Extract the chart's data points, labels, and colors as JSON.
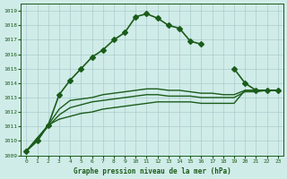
{
  "bg_color": "#d0ece8",
  "grid_color": "#aacccc",
  "line_color": "#1a5c1a",
  "x_ticks": [
    0,
    1,
    2,
    3,
    4,
    5,
    6,
    7,
    8,
    9,
    10,
    11,
    12,
    13,
    14,
    15,
    16,
    17,
    18,
    19,
    20,
    21,
    22,
    23
  ],
  "y_ticks": [
    1009,
    1010,
    1011,
    1012,
    1013,
    1014,
    1015,
    1016,
    1017,
    1018,
    1019
  ],
  "ylim": [
    1009,
    1019.5
  ],
  "xlim": [
    -0.5,
    23.5
  ],
  "xlabel": "Graphe pression niveau de la mer (hPa)",
  "series": [
    {
      "x": [
        0,
        1,
        2,
        3,
        4,
        5,
        6,
        7,
        8,
        9,
        10,
        11,
        12,
        13,
        14,
        15,
        16,
        17,
        18,
        19,
        20,
        21,
        22,
        23
      ],
      "y": [
        1009.3,
        1010.0,
        1011.1,
        1013.2,
        1014.2,
        1015.0,
        1015.8,
        1016.3,
        1017.0,
        1017.5,
        1018.6,
        1018.8,
        1018.5,
        1018.0,
        1017.8,
        1016.9,
        1016.7,
        null,
        null,
        1015.0,
        1014.0,
        1013.5,
        1013.5,
        1013.5
      ],
      "marker": "D",
      "markersize": 3,
      "linewidth": 1.2
    },
    {
      "x": [
        0,
        1,
        2,
        3,
        4,
        5,
        6,
        7,
        8,
        9,
        10,
        11,
        12,
        13,
        14,
        15,
        16,
        17,
        18,
        19,
        20,
        21,
        22,
        23
      ],
      "y": [
        1009.3,
        1010.2,
        1011.1,
        1012.2,
        1012.8,
        1012.9,
        1013.0,
        1013.2,
        1013.3,
        1013.4,
        1013.5,
        1013.6,
        1013.6,
        1013.5,
        1013.5,
        1013.4,
        1013.3,
        1013.3,
        1013.2,
        1013.2,
        1013.5,
        1013.5,
        1013.5,
        1013.5
      ],
      "marker": null,
      "markersize": 0,
      "linewidth": 1.0
    },
    {
      "x": [
        0,
        1,
        2,
        3,
        4,
        5,
        6,
        7,
        8,
        9,
        10,
        11,
        12,
        13,
        14,
        15,
        16,
        17,
        18,
        19,
        20,
        21,
        22,
        23
      ],
      "y": [
        1009.3,
        1010.2,
        1011.0,
        1011.8,
        1012.3,
        1012.5,
        1012.7,
        1012.8,
        1012.9,
        1013.0,
        1013.1,
        1013.2,
        1013.2,
        1013.1,
        1013.1,
        1013.1,
        1013.0,
        1013.0,
        1013.0,
        1013.0,
        1013.4,
        1013.4,
        1013.5,
        1013.5
      ],
      "marker": null,
      "markersize": 0,
      "linewidth": 1.0
    },
    {
      "x": [
        0,
        1,
        2,
        3,
        4,
        5,
        6,
        7,
        8,
        9,
        10,
        11,
        12,
        13,
        14,
        15,
        16,
        17,
        18,
        19,
        20,
        21,
        22,
        23
      ],
      "y": [
        1009.3,
        1010.0,
        1011.1,
        1011.5,
        1011.7,
        1011.9,
        1012.0,
        1012.2,
        1012.3,
        1012.4,
        1012.5,
        1012.6,
        1012.7,
        1012.7,
        1012.7,
        1012.7,
        1012.6,
        1012.6,
        1012.6,
        1012.6,
        1013.5,
        1013.5,
        1013.5,
        1013.5
      ],
      "marker": null,
      "markersize": 0,
      "linewidth": 1.0
    }
  ]
}
